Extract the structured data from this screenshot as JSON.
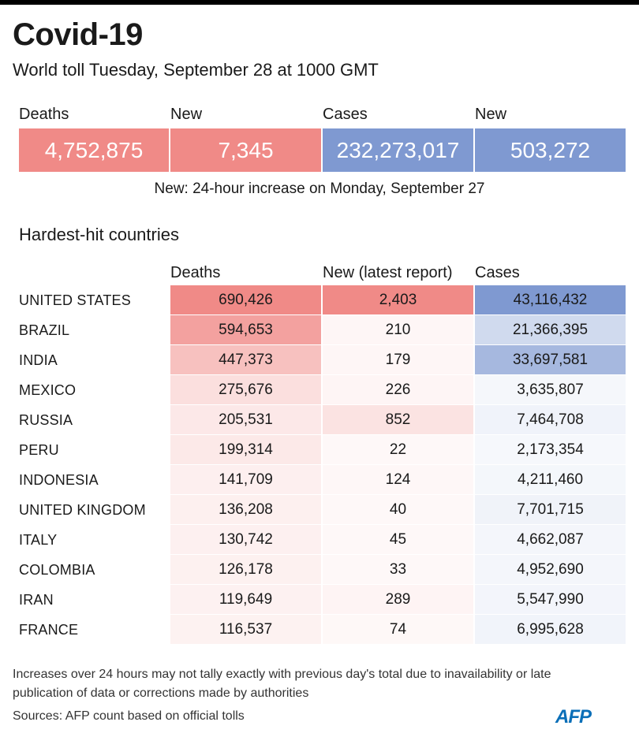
{
  "header": {
    "title": "Covid-19",
    "subtitle": "World toll Tuesday, September 28 at 1000 GMT"
  },
  "summary": {
    "labels": [
      "Deaths",
      "New",
      "Cases",
      "New"
    ],
    "values": [
      "4,752,875",
      "7,345",
      "232,273,017",
      "503,272"
    ],
    "note": "New: 24-hour increase on Monday, September 27"
  },
  "colors": {
    "deaths_accent": "#f08a87",
    "cases_accent": "#7f99d1"
  },
  "chart_data": {
    "type": "table",
    "title": "Hardest-hit countries",
    "columns": [
      "Deaths",
      "New (latest report)",
      "Cases"
    ],
    "rows": [
      {
        "country": "UNITED STATES",
        "deaths": 690426,
        "new": 2403,
        "cases": 43116432,
        "deaths_text": "690,426",
        "new_text": "2,403",
        "cases_text": "43,116,432"
      },
      {
        "country": "BRAZIL",
        "deaths": 594653,
        "new": 210,
        "cases": 21366395,
        "deaths_text": "594,653",
        "new_text": "210",
        "cases_text": "21,366,395"
      },
      {
        "country": "INDIA",
        "deaths": 447373,
        "new": 179,
        "cases": 33697581,
        "deaths_text": "447,373",
        "new_text": "179",
        "cases_text": "33,697,581"
      },
      {
        "country": "MEXICO",
        "deaths": 275676,
        "new": 226,
        "cases": 3635807,
        "deaths_text": "275,676",
        "new_text": "226",
        "cases_text": "3,635,807"
      },
      {
        "country": "RUSSIA",
        "deaths": 205531,
        "new": 852,
        "cases": 7464708,
        "deaths_text": "205,531",
        "new_text": "852",
        "cases_text": "7,464,708"
      },
      {
        "country": "PERU",
        "deaths": 199314,
        "new": 22,
        "cases": 2173354,
        "deaths_text": "199,314",
        "new_text": "22",
        "cases_text": "2,173,354"
      },
      {
        "country": "INDONESIA",
        "deaths": 141709,
        "new": 124,
        "cases": 4211460,
        "deaths_text": "141,709",
        "new_text": "124",
        "cases_text": "4,211,460"
      },
      {
        "country": "UNITED KINGDOM",
        "deaths": 136208,
        "new": 40,
        "cases": 7701715,
        "deaths_text": "136,208",
        "new_text": "40",
        "cases_text": "7,701,715"
      },
      {
        "country": "ITALY",
        "deaths": 130742,
        "new": 45,
        "cases": 4662087,
        "deaths_text": "130,742",
        "new_text": "45",
        "cases_text": "4,662,087"
      },
      {
        "country": "COLOMBIA",
        "deaths": 126178,
        "new": 33,
        "cases": 4952690,
        "deaths_text": "126,178",
        "new_text": "33",
        "cases_text": "4,952,690"
      },
      {
        "country": "IRAN",
        "deaths": 119649,
        "new": 289,
        "cases": 5547990,
        "deaths_text": "119,649",
        "new_text": "289",
        "cases_text": "5,547,990"
      },
      {
        "country": "FRANCE",
        "deaths": 116537,
        "new": 74,
        "cases": 6995628,
        "deaths_text": "116,537",
        "new_text": "74",
        "cases_text": "6,995,628"
      }
    ]
  },
  "footer": {
    "note": "Increases over 24 hours may not tally exactly with previous day's total due to inavailability or late publication of data or corrections made by authorities",
    "sources": "Sources: AFP count based on official tolls",
    "logo_text": "AFP"
  }
}
